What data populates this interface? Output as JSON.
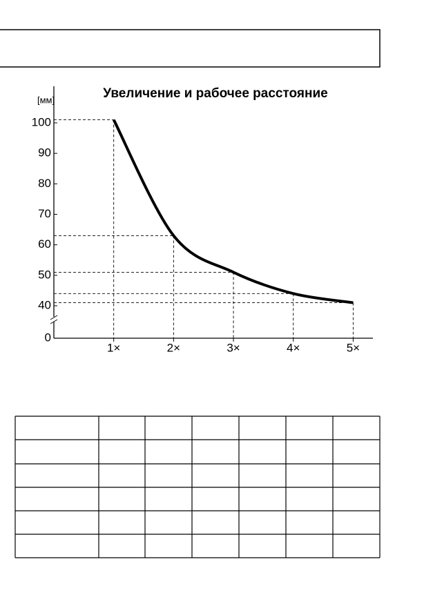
{
  "chart_data": {
    "type": "line",
    "title": "Увеличение и рабочее расстояние",
    "y_unit": "[мм]",
    "x": [
      1,
      2,
      3,
      4,
      5
    ],
    "series": [
      {
        "color": "#000000",
        "values": [
          101,
          63,
          51,
          44,
          41
        ]
      }
    ],
    "xlim": [
      0,
      5.33
    ],
    "xticks": [
      {
        "value": 1,
        "label": "1×"
      },
      {
        "value": 2,
        "label": "2×"
      },
      {
        "value": 3,
        "label": "3×"
      },
      {
        "value": 4,
        "label": "4×"
      },
      {
        "value": 5,
        "label": "5×"
      }
    ],
    "ylim": [
      40,
      112
    ],
    "yticks": [
      0,
      40,
      50,
      60,
      70,
      80,
      90,
      100
    ],
    "y_break": true,
    "guide_lines": true
  }
}
